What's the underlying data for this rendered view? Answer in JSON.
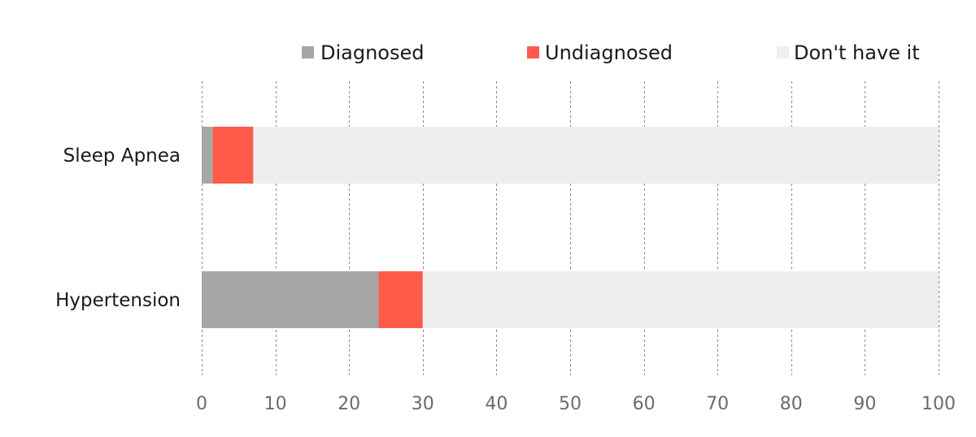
{
  "chart_data": {
    "type": "bar",
    "orientation": "horizontal",
    "stacked": true,
    "title": "",
    "xlabel": "",
    "ylabel": "",
    "categories": [
      "Sleep Apnea",
      "Hypertension"
    ],
    "series": [
      {
        "name": "Diagnosed",
        "color": "#a6a6a6",
        "values": [
          1.5,
          24
        ]
      },
      {
        "name": "Undiagnosed",
        "color": "#ff5a4a",
        "values": [
          5.5,
          6
        ]
      },
      {
        "name": "Don't have it",
        "color": "#eeeeee",
        "values": [
          93,
          70
        ]
      }
    ],
    "xlim": [
      0,
      100
    ],
    "x_ticks": [
      "0",
      "10",
      "20",
      "30",
      "40",
      "50",
      "60",
      "70",
      "80",
      "90",
      "100"
    ],
    "grid": "vertical-dashed",
    "legend_position": "top"
  }
}
